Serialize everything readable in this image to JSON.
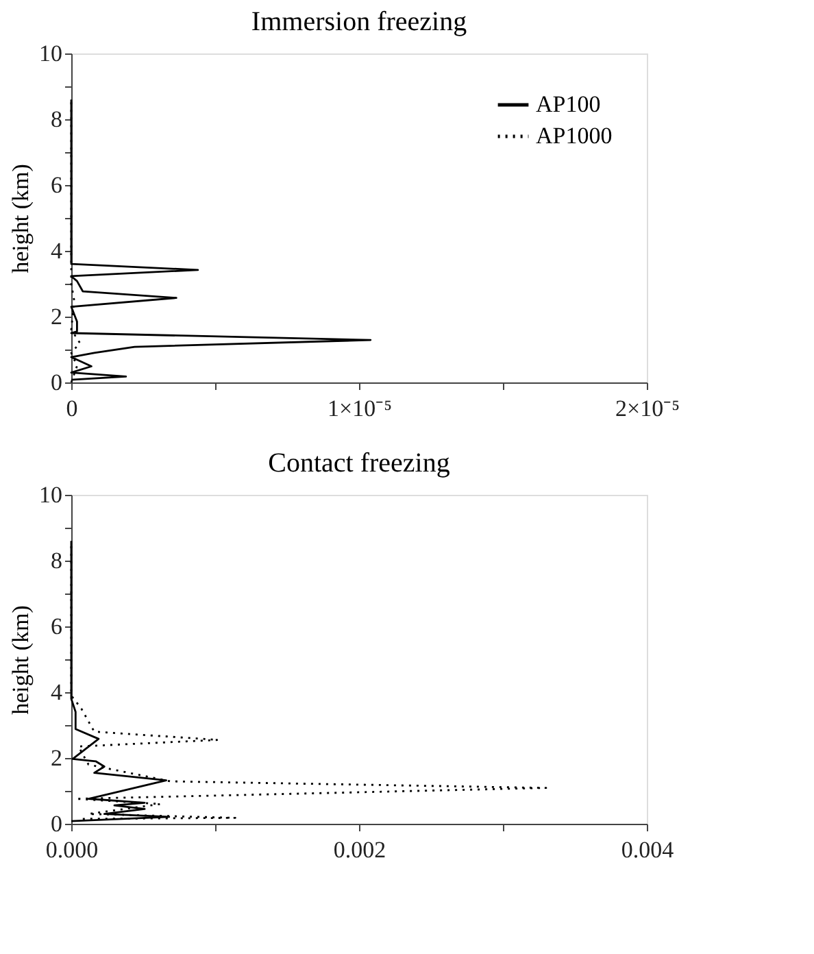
{
  "chart_data": [
    {
      "type": "line",
      "title": "Immersion freezing",
      "ylabel": "height (km)",
      "legend": "top right",
      "grid": false,
      "xlim": [
        0,
        2e-05
      ],
      "xticks": [
        0,
        {
          "value": 5e-06,
          "label": null
        },
        {
          "value": 1e-05,
          "label": "1×10⁻⁵"
        },
        {
          "value": 1.5e-05,
          "label": null
        },
        {
          "value": 2e-05,
          "label": "2×10⁻⁵"
        }
      ],
      "ylim": [
        0,
        10
      ],
      "yticks": [
        0,
        {
          "value": 1,
          "label": null
        },
        2,
        {
          "value": 3,
          "label": null
        },
        4,
        {
          "value": 5,
          "label": null
        },
        6,
        {
          "value": 7,
          "label": null
        },
        8,
        {
          "value": 9,
          "label": null
        },
        10
      ],
      "series": [
        {
          "name": "AP100",
          "color": "#000000",
          "line_style": "solid",
          "x": [
            0,
            1.9e-06,
            0,
            7e-07,
            0,
            8e-07,
            2.2e-06,
            1.04e-05,
            0,
            2e-07,
            2e-07,
            0,
            3.65e-06,
            4e-07,
            2e-07,
            0,
            4.4e-06,
            0,
            0
          ],
          "values": [
            0.08,
            0.18,
            0.3,
            0.49,
            0.77,
            0.9,
            1.08,
            1.29,
            1.5,
            1.55,
            1.85,
            2.3,
            2.57,
            2.77,
            3.08,
            3.23,
            3.42,
            3.6,
            8.6
          ]
        },
        {
          "name": "AP1000",
          "color": "#000000",
          "line_style": "dotted",
          "x": [
            0,
            2e-07,
            0,
            3e-07,
            0,
            1e-07,
            0,
            0
          ],
          "values": [
            0,
            0.5,
            0.9,
            1.2,
            1.6,
            2.5,
            3.0,
            8.6
          ]
        }
      ]
    },
    {
      "type": "line",
      "title": "Contact freezing",
      "ylabel": "height (km)",
      "grid": false,
      "xlim": [
        0,
        0.004
      ],
      "xticks": [
        {
          "value": 0,
          "label": "0.000"
        },
        {
          "value": 0.001,
          "label": null
        },
        {
          "value": 0.002,
          "label": "0.002"
        },
        {
          "value": 0.003,
          "label": null
        },
        {
          "value": 0.004,
          "label": "0.004"
        }
      ],
      "ylim": [
        0,
        10
      ],
      "yticks": [
        0,
        {
          "value": 1,
          "label": null
        },
        2,
        {
          "value": 3,
          "label": null
        },
        4,
        {
          "value": 5,
          "label": null
        },
        6,
        {
          "value": 7,
          "label": null
        },
        8,
        {
          "value": 9,
          "label": null
        },
        10
      ],
      "series": [
        {
          "color": "#000000",
          "line_style": "solid",
          "x": [
            0,
            0.00068,
            0.00023,
            0.00051,
            0.0003,
            0.00051,
            0.00012,
            0.00066,
            0.00016,
            0.00023,
            0.00017,
            1e-05,
            0.00019,
            3e-05,
            3e-05,
            0,
            0
          ],
          "values": [
            0.08,
            0.21,
            0.3,
            0.45,
            0.56,
            0.64,
            0.76,
            1.32,
            1.55,
            1.74,
            1.9,
            1.97,
            2.58,
            2.88,
            3.4,
            3.8,
            8.6
          ]
        },
        {
          "color": "#000000",
          "line_style": "dotted",
          "x": [
            8e-05,
            0.00114,
            0.00012,
            0.00062,
            3e-05,
            0.0033,
            0.00069,
            0.00012,
            5e-05,
            0.00102,
            0.00016,
            7e-05,
            0,
            0
          ],
          "values": [
            0.15,
            0.18,
            0.3,
            0.6,
            0.76,
            1.09,
            1.29,
            1.8,
            2.35,
            2.55,
            2.8,
            3.5,
            3.9,
            8.6
          ]
        }
      ]
    }
  ]
}
